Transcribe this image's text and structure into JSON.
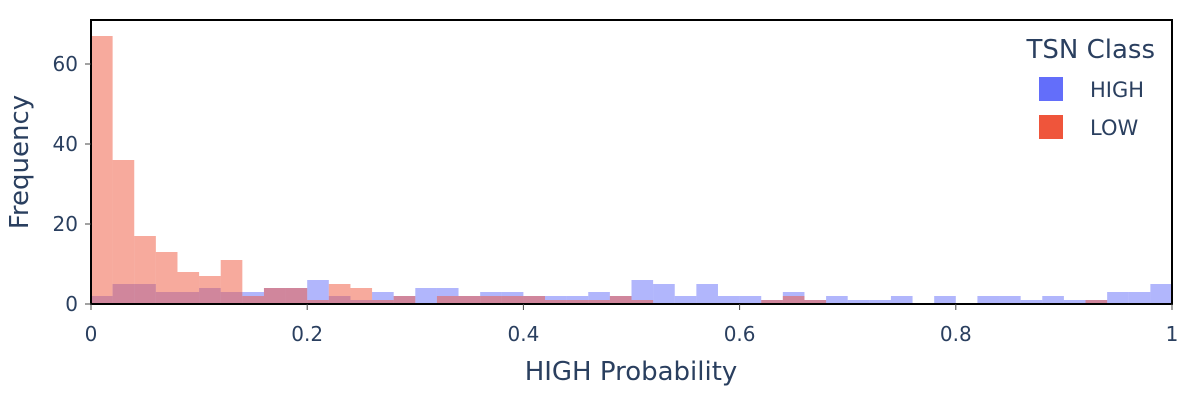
{
  "chart_data": {
    "type": "bar",
    "subtype": "overlaid-histogram",
    "xlabel": "HIGH Probability",
    "ylabel": "Frequency",
    "xlim": [
      0,
      1
    ],
    "ylim": [
      0,
      70
    ],
    "x_ticks": [
      0,
      0.2,
      0.4,
      0.6,
      0.8,
      1
    ],
    "x_tick_labels": [
      "0",
      "0.2",
      "0.4",
      "0.6",
      "0.8",
      "1"
    ],
    "y_ticks": [
      0,
      20,
      40,
      60
    ],
    "y_tick_labels": [
      "0",
      "20",
      "40",
      "60"
    ],
    "bin_width": 0.02,
    "bin_starts": [
      0,
      0.02,
      0.04,
      0.06,
      0.08,
      0.1,
      0.12,
      0.14,
      0.16,
      0.18,
      0.2,
      0.22,
      0.24,
      0.26,
      0.28,
      0.3,
      0.32,
      0.34,
      0.36,
      0.38,
      0.4,
      0.42,
      0.44,
      0.46,
      0.48,
      0.5,
      0.52,
      0.54,
      0.56,
      0.58,
      0.6,
      0.62,
      0.64,
      0.66,
      0.68,
      0.7,
      0.72,
      0.74,
      0.76,
      0.78,
      0.8,
      0.82,
      0.84,
      0.86,
      0.88,
      0.9,
      0.92,
      0.94,
      0.96,
      0.98
    ],
    "grid": false,
    "legend": {
      "title": "TSN Class",
      "placement": "top-right"
    },
    "series": [
      {
        "name": "HIGH",
        "color": "#636efa",
        "values": [
          2,
          5,
          5,
          3,
          3,
          4,
          3,
          3,
          4,
          4,
          6,
          2,
          1,
          3,
          2,
          4,
          4,
          2,
          3,
          3,
          2,
          2,
          2,
          3,
          2,
          6,
          5,
          2,
          5,
          2,
          2,
          1,
          3,
          1,
          2,
          1,
          1,
          2,
          0,
          2,
          0,
          2,
          2,
          1,
          2,
          1,
          1,
          3,
          3,
          5
        ]
      },
      {
        "name": "LOW",
        "color": "#ef553b",
        "values": [
          67,
          36,
          17,
          13,
          8,
          7,
          11,
          2,
          4,
          4,
          1,
          5,
          4,
          1,
          2,
          0,
          2,
          2,
          2,
          2,
          2,
          1,
          1,
          1,
          2,
          1,
          0,
          0,
          0,
          0,
          0,
          1,
          2,
          1,
          0,
          0,
          0,
          0,
          0,
          0,
          0,
          0,
          0,
          0,
          0,
          0,
          1,
          0,
          0,
          0
        ]
      }
    ]
  }
}
